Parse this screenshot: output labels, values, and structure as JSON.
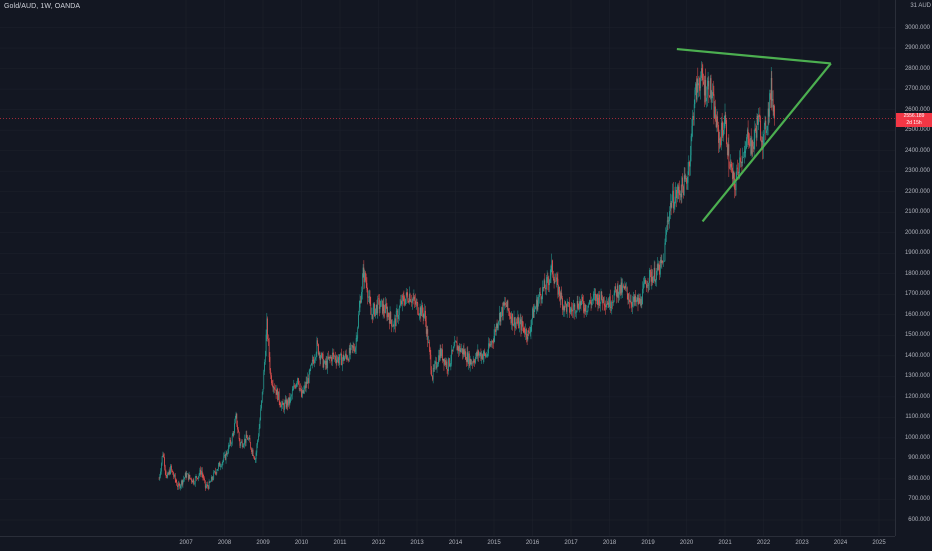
{
  "header": {
    "symbol_title": "Gold/AUD, 1W, OANDA",
    "currency": "31 AUD"
  },
  "last_price": {
    "value": "2556.189",
    "countdown": "2d 15h",
    "color": "#f23645"
  },
  "colors": {
    "background": "#131722",
    "grid": "#1e222d",
    "up_candle": "#26a69a",
    "down_candle": "#ef5350",
    "trendline": "#4caf50",
    "price_line": "#f23645"
  },
  "drawings": {
    "upper_trendline": {
      "start": [
        "2019-10",
        2895
      ],
      "end": [
        "2023-10",
        2825
      ]
    },
    "lower_trendline": {
      "start": [
        "2020-06",
        2055
      ],
      "end": [
        "2023-10",
        2825
      ]
    }
  },
  "chart_data": {
    "type": "candlestick",
    "title": "Gold/AUD, 1W, OANDA",
    "ylim": [
      550,
      3100
    ],
    "y_ticks": [
      "3000.000",
      "2900.000",
      "2800.000",
      "2700.000",
      "2600.000",
      "2500.000",
      "2400.000",
      "2300.000",
      "2200.000",
      "2100.000",
      "2000.000",
      "1900.000",
      "1800.000",
      "1700.000",
      "1600.000",
      "1500.000",
      "1400.000",
      "1300.000",
      "1200.000",
      "1100.000",
      "1000.000",
      "900.000",
      "800.000",
      "700.000",
      "600.000"
    ],
    "x_ticks": [
      "2007",
      "2008",
      "2009",
      "2010",
      "2011",
      "2012",
      "2013",
      "2014",
      "2015",
      "2016",
      "2017",
      "2018",
      "2019",
      "2020",
      "2021",
      "2022",
      "2023",
      "2024",
      "2025"
    ],
    "series": [
      {
        "values": [
          [
            2006.3,
            800
          ],
          [
            2006.4,
            930
          ],
          [
            2006.5,
            800
          ],
          [
            2006.6,
            850
          ],
          [
            2006.8,
            760
          ],
          [
            2007.0,
            820
          ],
          [
            2007.2,
            790
          ],
          [
            2007.4,
            840
          ],
          [
            2007.5,
            760
          ],
          [
            2007.6,
            770
          ],
          [
            2007.8,
            850
          ],
          [
            2008.0,
            900
          ],
          [
            2008.2,
            1000
          ],
          [
            2008.3,
            1100
          ],
          [
            2008.4,
            970
          ],
          [
            2008.6,
            1000
          ],
          [
            2008.8,
            900
          ],
          [
            2008.9,
            1050
          ],
          [
            2009.0,
            1250
          ],
          [
            2009.1,
            1550
          ],
          [
            2009.2,
            1300
          ],
          [
            2009.3,
            1250
          ],
          [
            2009.5,
            1150
          ],
          [
            2009.7,
            1180
          ],
          [
            2009.9,
            1300
          ],
          [
            2010.0,
            1200
          ],
          [
            2010.2,
            1300
          ],
          [
            2010.4,
            1450
          ],
          [
            2010.6,
            1350
          ],
          [
            2010.8,
            1400
          ],
          [
            2011.0,
            1380
          ],
          [
            2011.2,
            1400
          ],
          [
            2011.4,
            1450
          ],
          [
            2011.6,
            1800
          ],
          [
            2011.7,
            1750
          ],
          [
            2011.8,
            1600
          ],
          [
            2012.0,
            1650
          ],
          [
            2012.2,
            1620
          ],
          [
            2012.4,
            1550
          ],
          [
            2012.6,
            1660
          ],
          [
            2012.8,
            1700
          ],
          [
            2013.0,
            1640
          ],
          [
            2013.2,
            1600
          ],
          [
            2013.3,
            1450
          ],
          [
            2013.4,
            1300
          ],
          [
            2013.6,
            1420
          ],
          [
            2013.8,
            1350
          ],
          [
            2014.0,
            1450
          ],
          [
            2014.2,
            1420
          ],
          [
            2014.4,
            1370
          ],
          [
            2014.6,
            1410
          ],
          [
            2014.8,
            1400
          ],
          [
            2015.0,
            1500
          ],
          [
            2015.1,
            1580
          ],
          [
            2015.3,
            1650
          ],
          [
            2015.5,
            1570
          ],
          [
            2015.7,
            1550
          ],
          [
            2015.9,
            1500
          ],
          [
            2016.0,
            1600
          ],
          [
            2016.2,
            1700
          ],
          [
            2016.4,
            1760
          ],
          [
            2016.5,
            1830
          ],
          [
            2016.6,
            1760
          ],
          [
            2016.8,
            1650
          ],
          [
            2017.0,
            1620
          ],
          [
            2017.2,
            1660
          ],
          [
            2017.4,
            1640
          ],
          [
            2017.6,
            1680
          ],
          [
            2017.8,
            1680
          ],
          [
            2018.0,
            1660
          ],
          [
            2018.2,
            1720
          ],
          [
            2018.4,
            1720
          ],
          [
            2018.6,
            1660
          ],
          [
            2018.8,
            1660
          ],
          [
            2018.9,
            1730
          ],
          [
            2019.0,
            1780
          ],
          [
            2019.2,
            1800
          ],
          [
            2019.4,
            1850
          ],
          [
            2019.5,
            2050
          ],
          [
            2019.6,
            2150
          ],
          [
            2019.8,
            2200
          ],
          [
            2020.0,
            2250
          ],
          [
            2020.1,
            2400
          ],
          [
            2020.2,
            2650
          ],
          [
            2020.35,
            2760
          ],
          [
            2020.5,
            2700
          ],
          [
            2020.6,
            2720
          ],
          [
            2020.75,
            2560
          ],
          [
            2020.85,
            2450
          ],
          [
            2021.0,
            2550
          ],
          [
            2021.1,
            2350
          ],
          [
            2021.25,
            2220
          ],
          [
            2021.4,
            2380
          ],
          [
            2021.5,
            2350
          ],
          [
            2021.6,
            2500
          ],
          [
            2021.7,
            2400
          ],
          [
            2021.85,
            2550
          ],
          [
            2022.0,
            2450
          ],
          [
            2022.1,
            2560
          ],
          [
            2022.2,
            2700
          ],
          [
            2022.25,
            2640
          ],
          [
            2022.3,
            2556
          ]
        ]
      }
    ]
  }
}
